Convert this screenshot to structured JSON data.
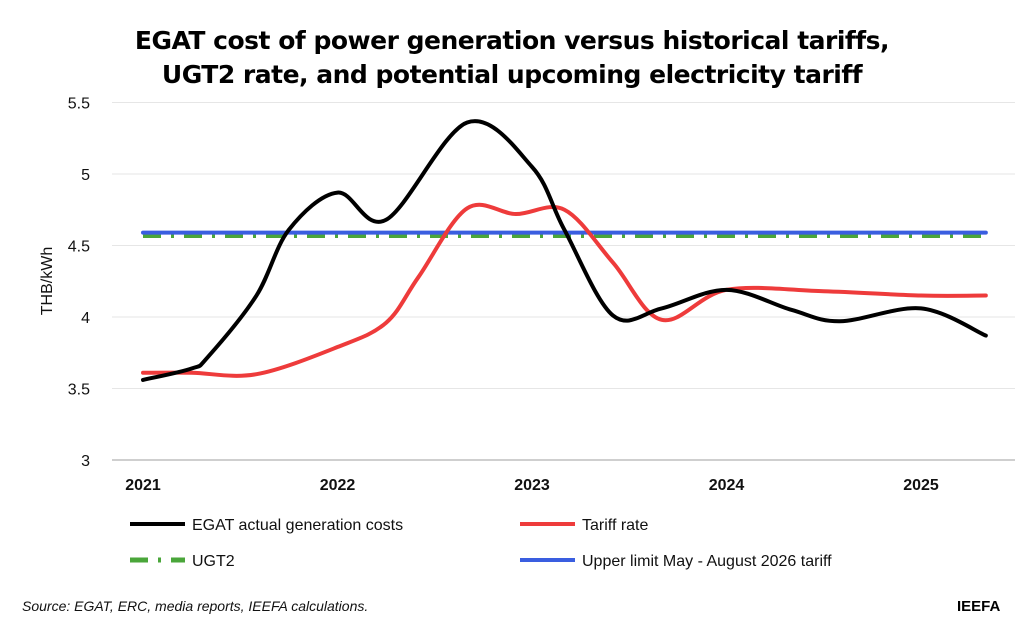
{
  "chart_data": {
    "type": "line",
    "title": "EGAT cost of power generation versus historical tariffs, UGT2 rate, and potential upcoming electricity tariff",
    "title_lines": [
      "EGAT cost of power generation versus historical tariffs,",
      "UGT2 rate, and potential upcoming electricity tariff"
    ],
    "xlabel": "",
    "ylabel": "THB/kWh",
    "ylim": [
      3,
      5.5
    ],
    "yticks": [
      "3",
      "3.5",
      "4",
      "4.5",
      "5",
      "5.5"
    ],
    "xticks": [
      "2021",
      "2022",
      "2023",
      "2024",
      "2025"
    ],
    "grid": true,
    "legend_position": "bottom",
    "series": [
      {
        "name": "EGAT actual generation costs",
        "color": "#000000",
        "style": "solid",
        "points": [
          [
            "2021-01",
            3.56
          ],
          [
            "2021-04",
            3.64
          ],
          [
            "2021-05",
            3.72
          ],
          [
            "2021-08",
            4.15
          ],
          [
            "2021-10",
            4.61
          ],
          [
            "2022-01",
            4.87
          ],
          [
            "2022-04",
            4.68
          ],
          [
            "2022-09",
            5.36
          ],
          [
            "2023-01",
            5.05
          ],
          [
            "2023-03",
            4.61
          ],
          [
            "2023-06",
            4.01
          ],
          [
            "2023-09",
            4.06
          ],
          [
            "2024-01",
            4.19
          ],
          [
            "2024-05",
            4.05
          ],
          [
            "2024-08",
            3.97
          ],
          [
            "2025-01",
            4.06
          ],
          [
            "2025-05",
            3.87
          ]
        ]
      },
      {
        "name": "Tariff rate",
        "color": "#ee3b3b",
        "style": "solid",
        "points": [
          [
            "2021-01",
            3.61
          ],
          [
            "2021-04",
            3.61
          ],
          [
            "2021-08",
            3.6
          ],
          [
            "2022-01",
            3.79
          ],
          [
            "2022-04",
            3.96
          ],
          [
            "2022-06",
            4.28
          ],
          [
            "2022-09",
            4.76
          ],
          [
            "2022-12",
            4.72
          ],
          [
            "2023-03",
            4.75
          ],
          [
            "2023-06",
            4.38
          ],
          [
            "2023-09",
            3.98
          ],
          [
            "2024-01",
            4.19
          ],
          [
            "2024-07",
            4.18
          ],
          [
            "2025-01",
            4.15
          ],
          [
            "2025-05",
            4.15
          ]
        ]
      },
      {
        "name": "UGT2",
        "color": "#4aa63a",
        "style": "dash-dot",
        "points": [
          [
            "2021-01",
            4.57
          ],
          [
            "2025-05",
            4.57
          ]
        ]
      },
      {
        "name": "Upper limit May - August 2026 tariff",
        "color": "#3a5ee0",
        "style": "solid",
        "points": [
          [
            "2021-01",
            4.59
          ],
          [
            "2025-05",
            4.59
          ]
        ]
      }
    ]
  },
  "footer": {
    "source": "Source: EGAT, ERC, media reports, IEEFA calculations.",
    "brand": "IEEFA"
  }
}
